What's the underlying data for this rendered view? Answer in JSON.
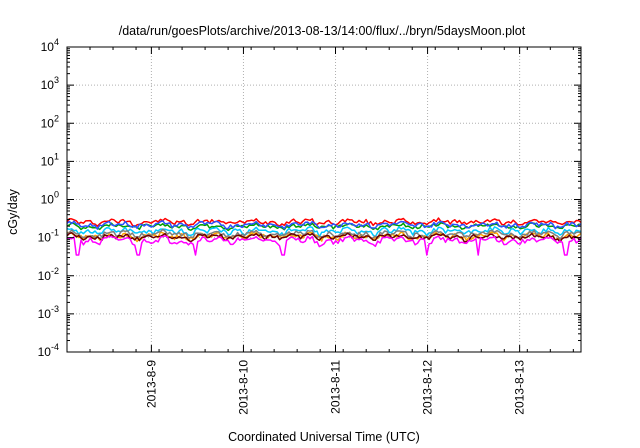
{
  "chart_data": {
    "type": "line",
    "title": "/data/run/goesPlots/archive/2013-08-13/14:00/flux/../bryn/5daysMoon.plot",
    "xlabel": "Coordinated Universal Time (UTC)",
    "ylabel": "cGy/day",
    "yscale": "log",
    "ylim": [
      0.0001,
      10000
    ],
    "xlim": [
      "2013-08-08 02:00",
      "2013-08-13 16:00"
    ],
    "grid": true,
    "y_ticks": [
      {
        "base": "10",
        "exp": "4"
      },
      {
        "base": "10",
        "exp": "3"
      },
      {
        "base": "10",
        "exp": "2"
      },
      {
        "base": "10",
        "exp": "1"
      },
      {
        "base": "10",
        "exp": "0"
      },
      {
        "base": "10",
        "exp": "-1"
      },
      {
        "base": "10",
        "exp": "-2"
      },
      {
        "base": "10",
        "exp": "-3"
      },
      {
        "base": "10",
        "exp": "-4"
      }
    ],
    "x_ticks": [
      "2013-8-9",
      "2013-8-10",
      "2013-8-11",
      "2013-8-12",
      "2013-8-13"
    ],
    "x_tick_dates": [
      "2013-08-09",
      "2013-08-10",
      "2013-08-11",
      "2013-08-12",
      "2013-08-13"
    ],
    "series": [
      {
        "color": "#ff0000",
        "level": 0.26,
        "spread": 0.07,
        "dips": []
      },
      {
        "color": "#00a000",
        "level": 0.2,
        "spread": 0.05,
        "dips": []
      },
      {
        "color": "#2a52ff",
        "level": 0.22,
        "spread": 0.06,
        "dips": []
      },
      {
        "color": "#00c8ff",
        "level": 0.15,
        "spread": 0.05,
        "dips": []
      },
      {
        "color": "#ffa500",
        "level": 0.11,
        "spread": 0.035,
        "dips": []
      },
      {
        "color": "#7f7f7f",
        "level": 0.125,
        "spread": 0.04,
        "dips": []
      },
      {
        "color": "#6b0000",
        "level": 0.105,
        "spread": 0.03,
        "dips": []
      },
      {
        "color": "#ff00ff",
        "level": 0.085,
        "spread": 0.03,
        "dips": [
          0.02,
          0.14,
          0.25,
          0.42,
          0.7,
          0.8,
          0.97
        ],
        "dip_value": 0.035
      }
    ]
  }
}
